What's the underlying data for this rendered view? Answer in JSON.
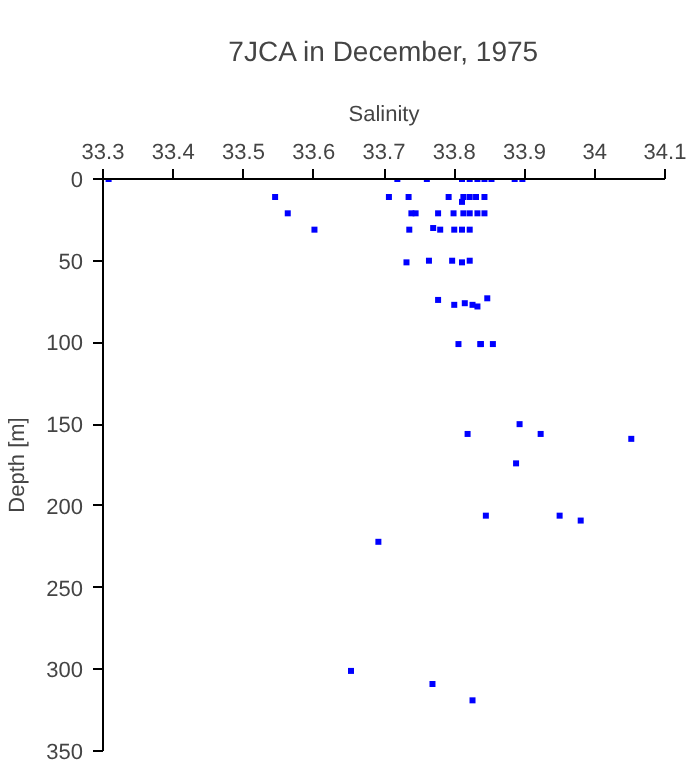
{
  "chart_data": {
    "type": "scatter",
    "title": "7JCA in December, 1975",
    "xlabel": "Salinity",
    "ylabel": "Depth [m]",
    "series": [
      {
        "color": "#0000ff",
        "x": [
          33.308,
          33.719,
          33.761,
          33.811,
          33.822,
          33.833,
          33.843,
          33.853,
          33.886,
          33.897,
          33.545,
          33.707,
          33.735,
          33.792,
          33.813,
          33.822,
          33.831,
          33.843,
          33.811,
          33.563,
          33.739,
          33.745,
          33.777,
          33.799,
          33.813,
          33.822,
          33.833,
          33.843,
          33.601,
          33.736,
          33.77,
          33.78,
          33.8,
          33.811,
          33.822,
          33.732,
          33.764,
          33.797,
          33.811,
          33.822,
          33.777,
          33.8,
          33.815,
          33.826,
          33.833,
          33.847,
          33.806,
          33.837,
          33.838,
          33.855,
          33.893,
          33.819,
          33.923,
          34.052,
          33.888,
          33.845,
          33.95,
          33.98,
          33.692,
          33.653,
          33.769,
          33.826
        ],
        "values": [
          0,
          0,
          0,
          0,
          0,
          0,
          0,
          0,
          0,
          0,
          11,
          11,
          11,
          11,
          11,
          11,
          11,
          11,
          14,
          21,
          21,
          21,
          21,
          21,
          21,
          21,
          21,
          21,
          31,
          31,
          30,
          31,
          31,
          31,
          31,
          51,
          50,
          50,
          51,
          50,
          74,
          77,
          76,
          77,
          78,
          73,
          101,
          101,
          101,
          101,
          150,
          156,
          156,
          159,
          174,
          206,
          206,
          209,
          222,
          301,
          309,
          319
        ]
      }
    ],
    "xlim": [
      33.3,
      34.1
    ],
    "xticks": [
      33.3,
      33.4,
      33.5,
      33.6,
      33.7,
      33.8,
      33.9,
      34,
      34.1
    ],
    "ylim": [
      350,
      0
    ],
    "yticks": [
      0,
      50,
      100,
      150,
      200,
      250,
      300,
      350
    ],
    "grid": false,
    "marker": "square"
  }
}
